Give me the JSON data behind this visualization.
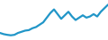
{
  "x": [
    0,
    1,
    2,
    3,
    4,
    5,
    6,
    7,
    8,
    9,
    10,
    11,
    12,
    13,
    14,
    15,
    16,
    17,
    18,
    19,
    20,
    21,
    22,
    23,
    24,
    25,
    26,
    27,
    28,
    29,
    30
  ],
  "y": [
    3,
    2.5,
    2.2,
    2.0,
    2.2,
    3.0,
    3.5,
    4.0,
    4.2,
    5.0,
    5.5,
    6.5,
    7.5,
    9.5,
    11.5,
    13.0,
    11.0,
    9.0,
    10.5,
    12.0,
    10.0,
    8.5,
    9.5,
    10.5,
    9.5,
    10.0,
    11.0,
    10.0,
    12.0,
    13.5,
    15.0
  ],
  "line_color": "#2196c8",
  "line_width": 1.6,
  "background_color": "#ffffff",
  "ylim": [
    0,
    17
  ],
  "xlim": [
    0,
    30
  ]
}
